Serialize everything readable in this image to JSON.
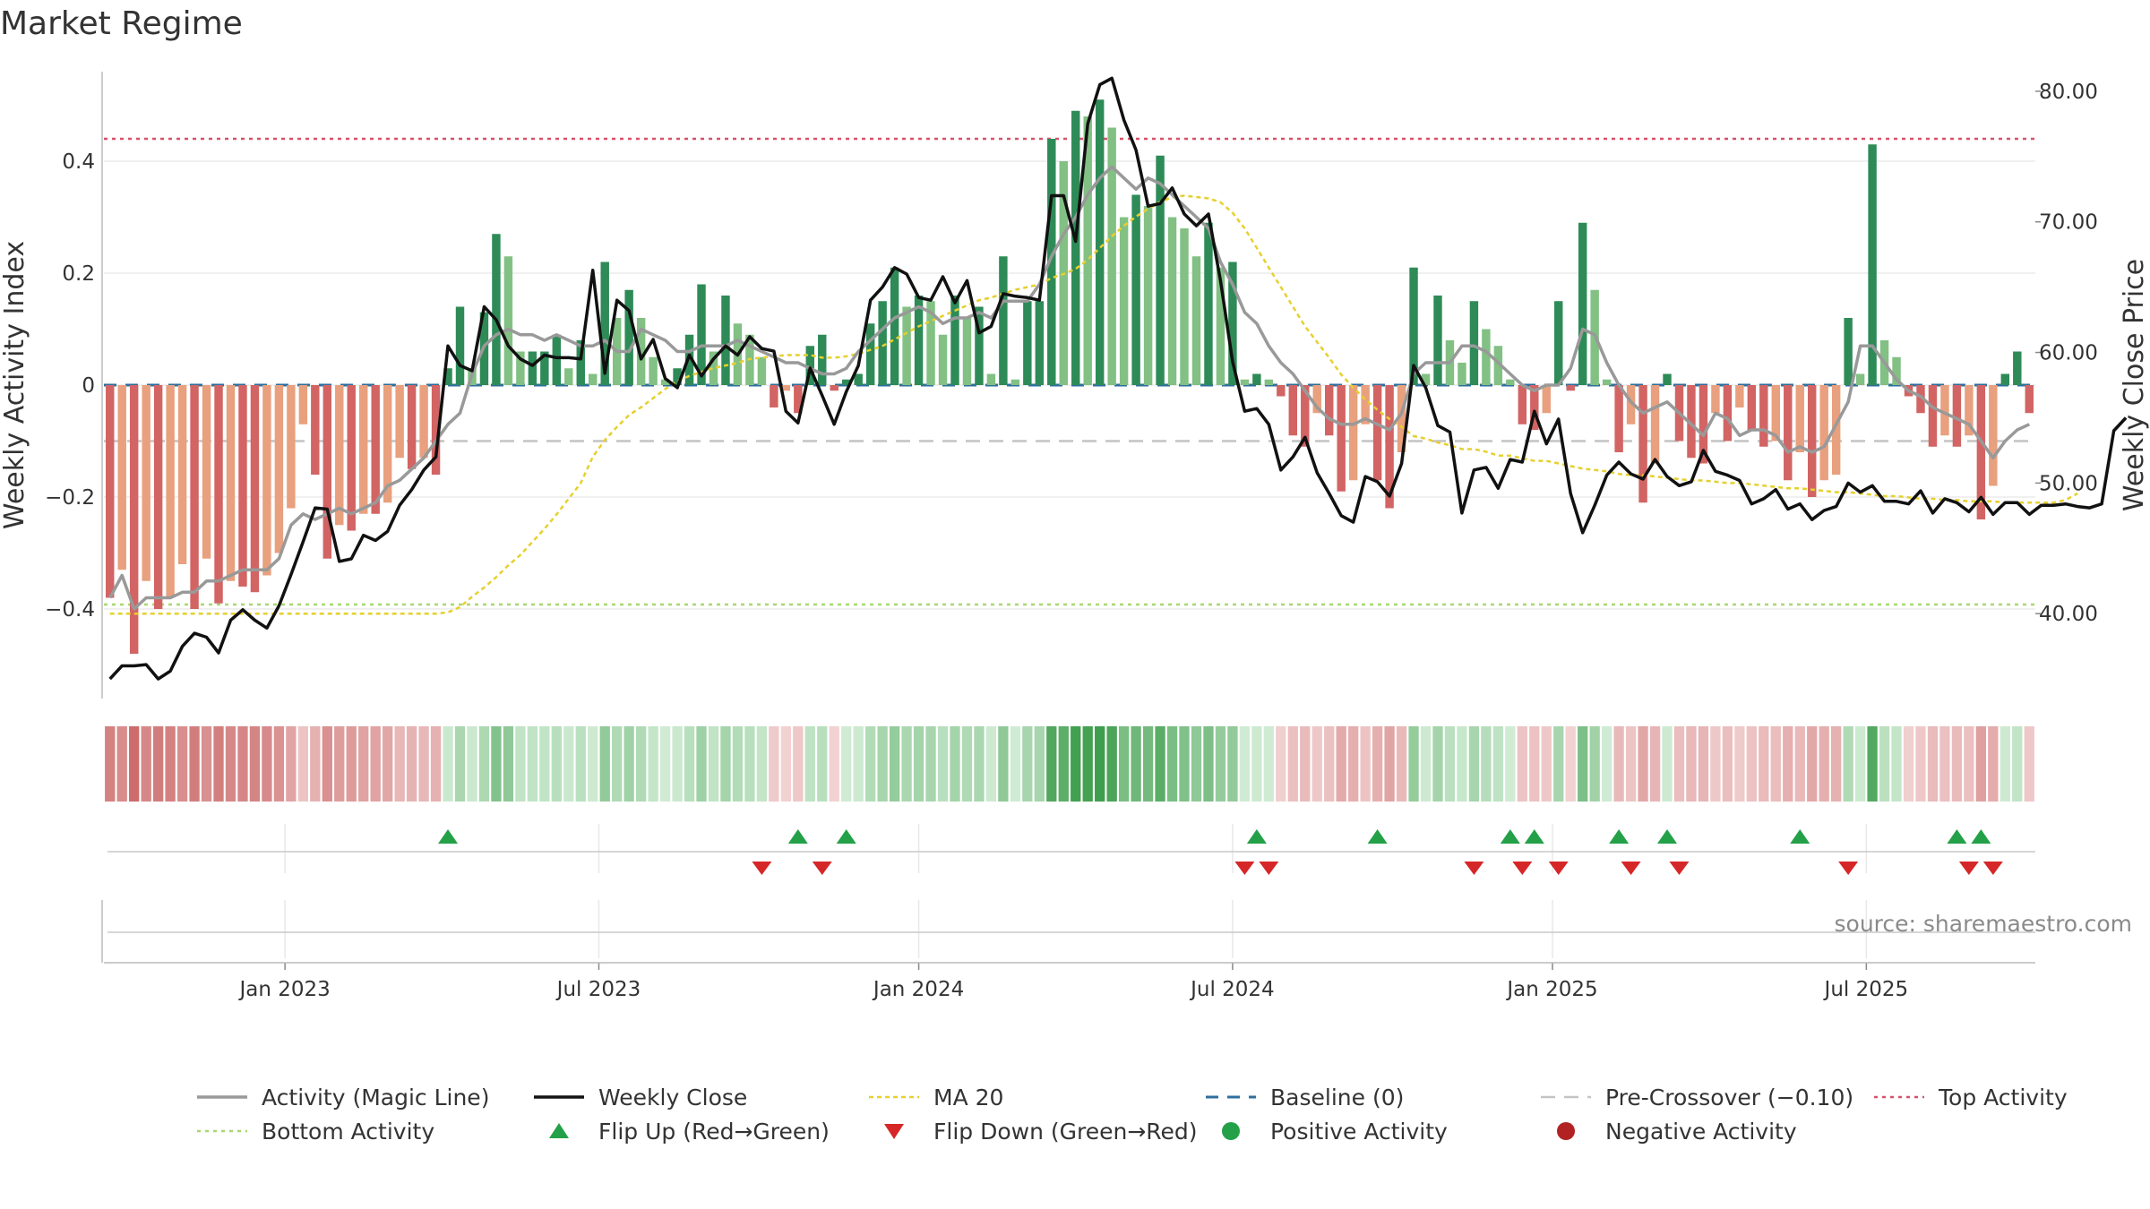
{
  "chart_data": {
    "type": "bar",
    "title": "Market Regime",
    "ylabel": "Weekly Activity Index",
    "y2label": "Weekly Close Price",
    "ylim": [
      -0.56,
      0.56
    ],
    "y2lim": [
      33.5,
      81.5
    ],
    "yticks": [
      {
        "v": 0.4,
        "label": "0.4"
      },
      {
        "v": 0.2,
        "label": "0.2"
      },
      {
        "v": 0,
        "label": "0"
      },
      {
        "v": -0.2,
        "label": "−0.2"
      },
      {
        "v": -0.4,
        "label": "−0.4"
      }
    ],
    "y2ticks": [
      {
        "v": 80,
        "label": "80.00"
      },
      {
        "v": 70,
        "label": "70.00"
      },
      {
        "v": 60,
        "label": "60.00"
      },
      {
        "v": 50,
        "label": "50.00"
      },
      {
        "v": 40,
        "label": "40.00"
      }
    ],
    "xticks": [
      {
        "i": 15,
        "label": "Jan 2023"
      },
      {
        "i": 41,
        "label": "Jul 2023"
      },
      {
        "i": 67.5,
        "label": "Jan 2024"
      },
      {
        "i": 93.5,
        "label": "Jul 2024"
      },
      {
        "i": 120,
        "label": "Jan 2025"
      },
      {
        "i": 146,
        "label": "Jul 2025"
      }
    ],
    "levels": {
      "top_activity": 0.44,
      "bottom_activity": -0.392,
      "pre_crossover": -0.1,
      "baseline": 0
    },
    "activity": [
      -0.38,
      -0.33,
      -0.48,
      -0.35,
      -0.4,
      -0.38,
      -0.32,
      -0.4,
      -0.31,
      -0.39,
      -0.35,
      -0.36,
      -0.37,
      -0.34,
      -0.3,
      -0.22,
      -0.07,
      -0.16,
      -0.31,
      -0.25,
      -0.26,
      -0.23,
      -0.23,
      -0.21,
      -0.13,
      -0.15,
      -0.13,
      -0.16,
      0.03,
      0.14,
      0.03,
      0.13,
      0.27,
      0.23,
      0.06,
      0.06,
      0.06,
      0.09,
      0.03,
      0.08,
      0.02,
      0.22,
      0.12,
      0.17,
      0.12,
      0.05,
      0.01,
      0.03,
      0.09,
      0.18,
      0.06,
      0.16,
      0.11,
      0.09,
      0.05,
      -0.04,
      -0.01,
      -0.05,
      0.07,
      0.09,
      -0.01,
      0.01,
      0.02,
      0.11,
      0.15,
      0.21,
      0.14,
      0.16,
      0.15,
      0.09,
      0.16,
      0.12,
      0.14,
      0.02,
      0.23,
      0.01,
      0.15,
      0.15,
      0.44,
      0.4,
      0.49,
      0.48,
      0.51,
      0.46,
      0.3,
      0.34,
      0.32,
      0.41,
      0.3,
      0.28,
      0.23,
      0.29,
      0.21,
      0.22,
      0.01,
      0.02,
      0.01,
      -0.02,
      -0.09,
      -0.11,
      -0.05,
      -0.09,
      -0.19,
      -0.17,
      -0.07,
      -0.17,
      -0.22,
      -0.12,
      0.21,
      0.02,
      0.16,
      0.08,
      0.04,
      0.15,
      0.1,
      0.07,
      0.01,
      -0.07,
      -0.08,
      -0.05,
      0.15,
      -0.01,
      0.29,
      0.17,
      0.01,
      -0.12,
      -0.07,
      -0.21,
      -0.14,
      0.02,
      -0.1,
      -0.13,
      -0.14,
      -0.05,
      -0.1,
      -0.04,
      -0.08,
      -0.11,
      -0.1,
      -0.17,
      -0.12,
      -0.2,
      -0.17,
      -0.16,
      0.12,
      0.02,
      0.43,
      0.08,
      0.05,
      -0.02,
      -0.05,
      -0.11,
      -0.09,
      -0.11,
      -0.09,
      -0.24,
      -0.18,
      0.02,
      0.06,
      -0.05
    ],
    "magic_line": [
      -0.38,
      -0.34,
      -0.4,
      -0.38,
      -0.38,
      -0.38,
      -0.37,
      -0.37,
      -0.35,
      -0.35,
      -0.34,
      -0.33,
      -0.33,
      -0.33,
      -0.31,
      -0.25,
      -0.23,
      -0.24,
      -0.23,
      -0.22,
      -0.23,
      -0.22,
      -0.21,
      -0.18,
      -0.17,
      -0.15,
      -0.13,
      -0.1,
      -0.07,
      -0.05,
      0.02,
      0.07,
      0.09,
      0.1,
      0.09,
      0.09,
      0.08,
      0.09,
      0.08,
      0.07,
      0.07,
      0.08,
      0.06,
      0.06,
      0.1,
      0.09,
      0.08,
      0.06,
      0.06,
      0.07,
      0.07,
      0.07,
      0.08,
      0.07,
      0.06,
      0.05,
      0.04,
      0.04,
      0.03,
      0.02,
      0.02,
      0.03,
      0.06,
      0.08,
      0.1,
      0.12,
      0.13,
      0.14,
      0.13,
      0.11,
      0.12,
      0.12,
      0.13,
      0.12,
      0.15,
      0.15,
      0.15,
      0.18,
      0.23,
      0.27,
      0.3,
      0.34,
      0.37,
      0.39,
      0.37,
      0.35,
      0.37,
      0.36,
      0.34,
      0.32,
      0.3,
      0.28,
      0.22,
      0.18,
      0.13,
      0.11,
      0.07,
      0.04,
      0.02,
      -0.01,
      -0.04,
      -0.06,
      -0.07,
      -0.07,
      -0.06,
      -0.07,
      -0.08,
      -0.05,
      0.02,
      0.04,
      0.04,
      0.04,
      0.07,
      0.07,
      0.06,
      0.04,
      0.02,
      0.0,
      -0.01,
      0.0,
      0.0,
      0.03,
      0.1,
      0.09,
      0.04,
      0.0,
      -0.03,
      -0.05,
      -0.04,
      -0.03,
      -0.05,
      -0.07,
      -0.09,
      -0.05,
      -0.06,
      -0.09,
      -0.08,
      -0.08,
      -0.09,
      -0.12,
      -0.11,
      -0.12,
      -0.11,
      -0.07,
      -0.03,
      0.07,
      0.07,
      0.04,
      0.01,
      -0.01,
      -0.02,
      -0.04,
      -0.05,
      -0.06,
      -0.07,
      -0.1,
      -0.13,
      -0.1,
      -0.08,
      -0.07
    ],
    "weekly_close": [
      35.0,
      36.0,
      36.0,
      36.1,
      35.0,
      35.6,
      37.5,
      38.5,
      38.2,
      37.0,
      39.5,
      40.3,
      39.5,
      38.9,
      40.6,
      43.0,
      45.5,
      48.1,
      48.0,
      44.0,
      44.2,
      46.0,
      45.6,
      46.3,
      48.3,
      49.5,
      51.0,
      52.0,
      60.5,
      59.0,
      58.6,
      63.5,
      62.5,
      60.5,
      59.5,
      59.0,
      59.8,
      59.6,
      59.6,
      59.5,
      66.3,
      58.4,
      64.0,
      63.2,
      59.5,
      61.0,
      58.0,
      57.3,
      59.8,
      58.2,
      59.5,
      60.5,
      59.8,
      61.2,
      60.3,
      60.1,
      55.5,
      54.6,
      58.8,
      56.7,
      54.5,
      57.0,
      59.0,
      64.0,
      65.0,
      66.5,
      66.0,
      64.2,
      64.0,
      65.8,
      63.8,
      65.5,
      61.5,
      62.0,
      64.5,
      64.3,
      64.2,
      64.0,
      72.0,
      72.0,
      68.5,
      77.5,
      80.5,
      81.0,
      77.8,
      75.5,
      71.2,
      71.4,
      72.6,
      70.6,
      69.7,
      70.6,
      65.5,
      59.3,
      55.5,
      55.7,
      54.5,
      51.0,
      52.0,
      53.5,
      50.8,
      49.2,
      47.5,
      47.0,
      50.5,
      50.1,
      49.0,
      51.5,
      59.0,
      57.3,
      54.4,
      53.9,
      47.7,
      51.0,
      51.2,
      49.6,
      51.8,
      51.6,
      55.5,
      53.0,
      54.9,
      49.2,
      46.2,
      48.3,
      50.6,
      51.6,
      50.7,
      50.3,
      51.8,
      50.5,
      49.8,
      50.1,
      52.5,
      50.9,
      50.6,
      50.2,
      48.4,
      48.8,
      49.5,
      48.0,
      48.4,
      47.2,
      47.9,
      48.2,
      50.0,
      49.3,
      49.8,
      48.6,
      48.6,
      48.4,
      49.4,
      47.7,
      48.8,
      48.5,
      47.8,
      48.9,
      47.6,
      48.5,
      48.5,
      47.6,
      48.3,
      48.3,
      48.4,
      48.2,
      48.1,
      48.4,
      54.0,
      55.0
    ],
    "ma20": [
      40.0,
      40.0,
      40.0,
      40.0,
      40.0,
      40.0,
      40.0,
      40.0,
      40.0,
      40.0,
      40.0,
      40.0,
      40.0,
      40.0,
      40.0,
      40.0,
      40.0,
      40.0,
      40.0,
      40.0,
      40.0,
      40.0,
      40.0,
      40.0,
      40.0,
      40.0,
      40.0,
      40.0,
      40.1,
      40.5,
      41.3,
      42.0,
      42.8,
      43.7,
      44.5,
      45.5,
      46.5,
      47.6,
      48.8,
      50.0,
      52.0,
      53.3,
      54.3,
      55.2,
      55.8,
      56.5,
      57.2,
      57.8,
      58.2,
      58.5,
      58.8,
      59.0,
      59.2,
      59.5,
      59.6,
      59.7,
      59.8,
      59.8,
      59.8,
      59.6,
      59.6,
      59.7,
      59.9,
      60.2,
      60.5,
      61.0,
      61.5,
      62.0,
      62.4,
      62.8,
      63.2,
      63.6,
      64.0,
      64.2,
      64.5,
      64.8,
      65.0,
      65.2,
      65.7,
      66.0,
      66.4,
      67.1,
      68.0,
      68.9,
      69.7,
      70.4,
      71.0,
      71.5,
      71.9,
      72.0,
      71.9,
      71.8,
      71.5,
      70.7,
      69.5,
      68.0,
      66.5,
      65.0,
      63.5,
      62.0,
      60.8,
      59.6,
      58.3,
      57.3,
      56.4,
      55.6,
      54.9,
      54.3,
      53.6,
      53.4,
      53.1,
      52.9,
      52.6,
      52.6,
      52.4,
      52.1,
      52.1,
      51.9,
      51.7,
      51.7,
      51.5,
      51.3,
      51.1,
      51.0,
      50.9,
      50.7,
      50.6,
      50.6,
      50.5,
      50.4,
      50.3,
      50.2,
      50.2,
      50.1,
      50.0,
      50.0,
      49.9,
      49.8,
      49.7,
      49.6,
      49.6,
      49.5,
      49.4,
      49.3,
      49.3,
      49.2,
      49.1,
      49.0,
      49.0,
      48.9,
      48.8,
      48.8,
      48.7,
      48.7,
      48.6,
      48.6,
      48.6,
      48.5,
      48.5,
      48.5,
      48.5,
      48.5,
      48.7,
      49.2
    ],
    "flip_up": [
      28,
      57,
      61,
      95,
      105,
      116,
      118,
      125,
      129,
      140,
      153,
      155
    ],
    "flip_down": [
      54,
      59,
      94,
      96,
      113,
      117,
      120,
      126,
      130,
      144,
      154,
      156
    ],
    "legend": [
      {
        "key": "magic",
        "label": "Activity (Magic Line)"
      },
      {
        "key": "close",
        "label": "Weekly Close"
      },
      {
        "key": "ma",
        "label": "MA 20"
      },
      {
        "key": "baseline",
        "label": "Baseline (0)"
      },
      {
        "key": "precross",
        "label": "Pre-Crossover (−0.10)"
      },
      {
        "key": "top",
        "label": "Top Activity"
      },
      {
        "key": "bottom",
        "label": "Bottom Activity"
      },
      {
        "key": "flipup",
        "label": "Flip Up (Red→Green)"
      },
      {
        "key": "flipdown",
        "label": "Flip Down (Green→Red)"
      },
      {
        "key": "pos",
        "label": "Positive Activity"
      },
      {
        "key": "neg",
        "label": "Negative Activity"
      }
    ],
    "source": "source: sharemaestro.com",
    "colors": {
      "green_dark": "#2e8b57",
      "green_light": "#82c084",
      "red_dark": "#d26464",
      "red_light": "#e8a07e",
      "magic": "#999999",
      "close": "#111111",
      "ma": "#e6d02e",
      "baseline": "#2e6f9e",
      "precross": "#c4c4c4",
      "top": "#d9506a",
      "bottom": "#a8d86e",
      "flip_up": "#24a148",
      "flip_down": "#d62728",
      "pos": "#24a148",
      "neg": "#b22222"
    }
  }
}
